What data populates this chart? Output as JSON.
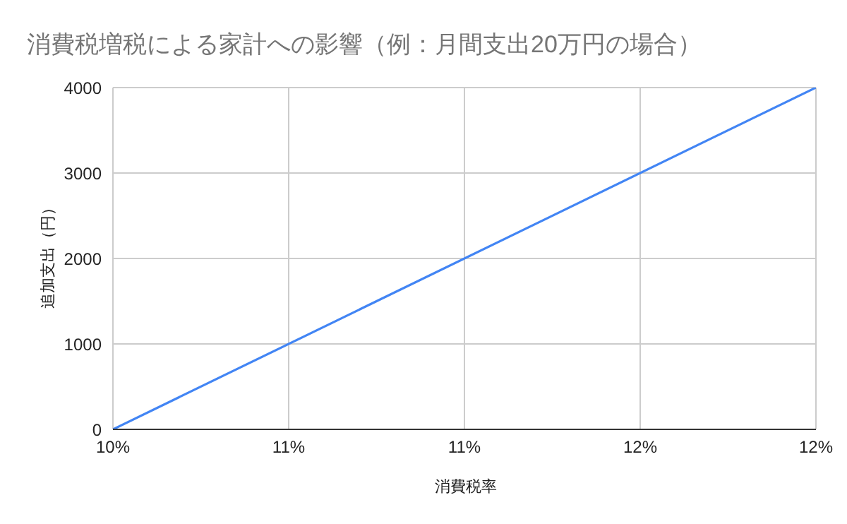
{
  "chart_data": {
    "type": "line",
    "title": "消費税増税による家計への影響（例：月間支出20万円の場合）",
    "xlabel": "消費税率",
    "ylabel": "追加支出（円）",
    "x": [
      10,
      12
    ],
    "series": [
      {
        "color": "#4285f4",
        "values": [
          0,
          4000
        ]
      }
    ],
    "xlim": [
      10,
      12
    ],
    "xticks": [
      {
        "value": 10,
        "label": "10%"
      },
      {
        "value": 10.5,
        "label": "11%"
      },
      {
        "value": 11,
        "label": "11%"
      },
      {
        "value": 11.5,
        "label": "12%"
      },
      {
        "value": 12,
        "label": "12%"
      }
    ],
    "ylim": [
      0,
      4000
    ],
    "yticks": [
      0,
      1000,
      2000,
      3000,
      4000
    ],
    "grid": true,
    "legend": false,
    "marker": "none",
    "line_style": "solid"
  }
}
